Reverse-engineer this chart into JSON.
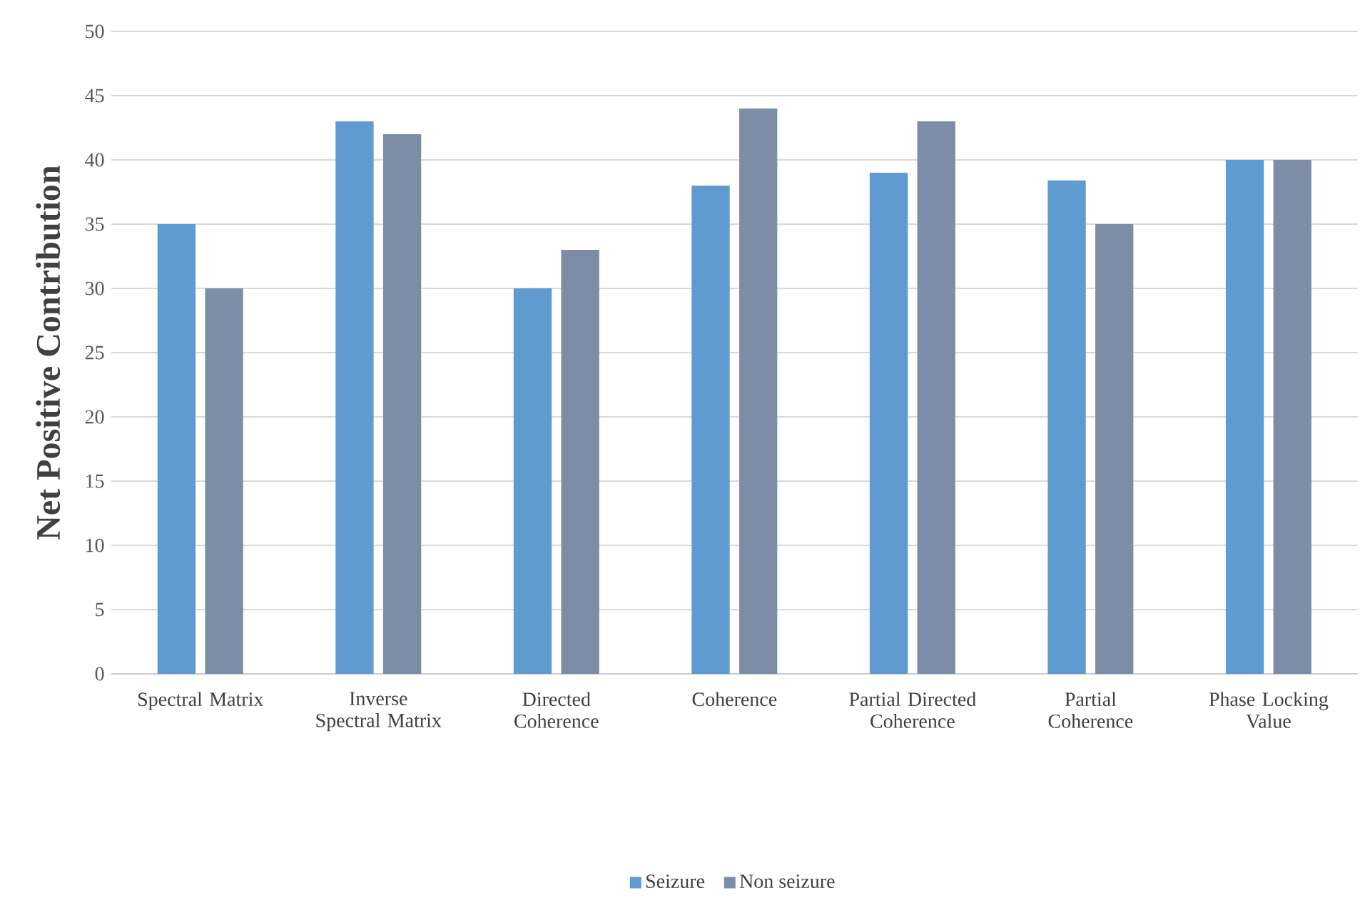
{
  "chart_data": {
    "type": "bar",
    "ylabel": "Net Positive Contribution",
    "categories": [
      "Spectral Matrix",
      "Inverse Spectral Matrix",
      "Directed Coherence",
      "Coherence",
      "Partial Directed Coherence",
      "Partial Coherence",
      "Phase Locking Value"
    ],
    "series": [
      {
        "name": "Seizure",
        "color": "#5f9bd0",
        "values": [
          35,
          43,
          30,
          38,
          39,
          38.4,
          40
        ]
      },
      {
        "name": "Non seizure",
        "color": "#7d8da8",
        "values": [
          30,
          42,
          33,
          44,
          43,
          35,
          40
        ]
      }
    ],
    "ylim": [
      0,
      50
    ],
    "yticks": [
      0,
      5,
      10,
      15,
      20,
      25,
      30,
      35,
      40,
      45,
      50
    ],
    "grid": "y",
    "legend": "bottom"
  }
}
